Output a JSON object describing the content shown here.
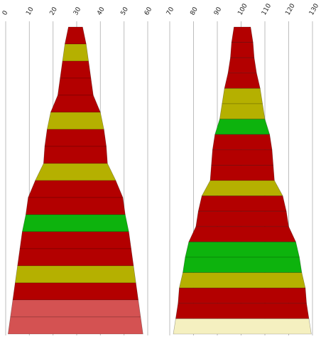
{
  "chart_data": [
    {
      "type": "funnel",
      "title": "",
      "xlabel": "",
      "ylabel": "",
      "xlim": [
        0,
        60
      ],
      "grid": true,
      "tick_labels": [
        "0",
        "10",
        "20",
        "30",
        "40",
        "50",
        "60"
      ],
      "ticks": [
        0,
        10,
        20,
        30,
        40,
        50,
        60
      ],
      "center": 29.5,
      "segments": [
        {
          "width": 6,
          "color": "#b30000"
        },
        {
          "width": 9,
          "color": "#b5b000"
        },
        {
          "width": 11,
          "color": "#b30000"
        },
        {
          "width": 13,
          "color": "#b30000"
        },
        {
          "width": 15,
          "color": "#b30000"
        },
        {
          "width": 21,
          "color": "#b5b000"
        },
        {
          "width": 24,
          "color": "#b30000"
        },
        {
          "width": 26,
          "color": "#b30000"
        },
        {
          "width": 27,
          "color": "#b5b000"
        },
        {
          "width": 34,
          "color": "#b30000"
        },
        {
          "width": 40,
          "color": "#b30000"
        },
        {
          "width": 42,
          "color": "#0db30d"
        },
        {
          "width": 45,
          "color": "#b30000"
        },
        {
          "width": 47,
          "color": "#b30000"
        },
        {
          "width": 49,
          "color": "#b5b000"
        },
        {
          "width": 51,
          "color": "#b30000"
        },
        {
          "width": 53,
          "color": "#d45252"
        },
        {
          "width": 55,
          "color": "#d45252"
        }
      ]
    },
    {
      "type": "funnel",
      "title": "",
      "xlabel": "",
      "ylabel": "",
      "xlim": [
        70,
        130
      ],
      "grid": true,
      "tick_labels": [
        "70",
        "80",
        "90",
        "100",
        "110",
        "120",
        "130"
      ],
      "ticks": [
        70,
        80,
        90,
        100,
        110,
        120,
        130
      ],
      "center": 100.5,
      "segments": [
        {
          "width": 7,
          "color": "#b30000"
        },
        {
          "width": 9,
          "color": "#b30000"
        },
        {
          "width": 10,
          "color": "#b30000"
        },
        {
          "width": 12,
          "color": "#b30000"
        },
        {
          "width": 15,
          "color": "#b5b000"
        },
        {
          "width": 17,
          "color": "#b5b000"
        },
        {
          "width": 19,
          "color": "#0db30d"
        },
        {
          "width": 23,
          "color": "#b30000"
        },
        {
          "width": 25,
          "color": "#b30000"
        },
        {
          "width": 26,
          "color": "#b30000"
        },
        {
          "width": 27,
          "color": "#b5b000"
        },
        {
          "width": 34,
          "color": "#b30000"
        },
        {
          "width": 37,
          "color": "#b30000"
        },
        {
          "width": 39,
          "color": "#b30000"
        },
        {
          "width": 45,
          "color": "#0db30d"
        },
        {
          "width": 48,
          "color": "#0db30d"
        },
        {
          "width": 50,
          "color": "#b5b000"
        },
        {
          "width": 53,
          "color": "#b30000"
        },
        {
          "width": 54,
          "color": "#b30000"
        },
        {
          "width": 56,
          "color": "#f5f0c0"
        }
      ]
    }
  ]
}
